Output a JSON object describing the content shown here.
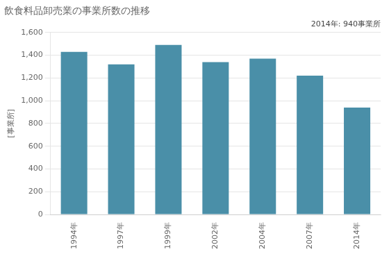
{
  "chart_data": {
    "type": "bar",
    "title": "飲食料品卸売業の事業所数の推移",
    "ylabel": "[事業所]",
    "annotation": "2014年: 940事業所",
    "categories": [
      "1994年",
      "1997年",
      "1999年",
      "2002年",
      "2004年",
      "2007年",
      "2014年"
    ],
    "values": [
      1430,
      1320,
      1490,
      1340,
      1370,
      1220,
      940
    ],
    "color": "#4a8fa8",
    "ylim": [
      0,
      1600
    ],
    "yticks": [
      0,
      200,
      400,
      600,
      800,
      {
        "value": 1000,
        "label": "1,000"
      },
      {
        "value": 1200,
        "label": "1,200"
      },
      {
        "value": 1400,
        "label": "1,400"
      },
      {
        "value": 1600,
        "label": "1,600"
      }
    ],
    "grid": true
  }
}
